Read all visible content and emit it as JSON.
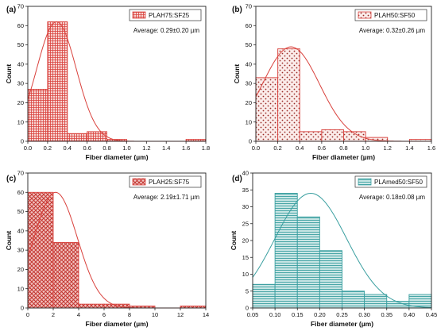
{
  "chart_data": [
    {
      "panel_label": "(a)",
      "type": "bar",
      "legend": "PLAH75:SF25",
      "annotation": "Average: 0.29±0.20 µm",
      "xlabel": "Fiber diameter (µm)",
      "ylabel": "Count",
      "xlim": [
        0,
        1.8
      ],
      "ylim": [
        0,
        70
      ],
      "xticks": [
        "0.0",
        "0.2",
        "0.4",
        "0.6",
        "0.8",
        "1.0",
        "1.2",
        "1.4",
        "1.6",
        "1.8"
      ],
      "yticks": [
        "0",
        "10",
        "20",
        "30",
        "40",
        "50",
        "60",
        "70"
      ],
      "bins": [
        [
          0,
          0.2,
          27
        ],
        [
          0.2,
          0.4,
          62
        ],
        [
          0.4,
          0.6,
          4
        ],
        [
          0.6,
          0.8,
          5
        ],
        [
          0.8,
          1.0,
          1
        ],
        [
          1.6,
          1.8,
          1
        ]
      ],
      "fit": {
        "mean": 0.29,
        "sd": 0.2,
        "peak": 62
      },
      "pattern": "grid",
      "color": "#d9423d"
    },
    {
      "panel_label": "(b)",
      "type": "bar",
      "legend": "PLAH50:SF50",
      "annotation": "Average: 0.32±0.26 µm",
      "xlabel": "Fiber diameter (µm)",
      "ylabel": "Count",
      "xlim": [
        0,
        1.6
      ],
      "ylim": [
        0,
        70
      ],
      "xticks": [
        "0.0",
        "0.2",
        "0.4",
        "0.6",
        "0.8",
        "1.0",
        "1.2",
        "1.4",
        "1.6"
      ],
      "yticks": [
        "0",
        "10",
        "20",
        "30",
        "40",
        "50",
        "60",
        "70"
      ],
      "bins": [
        [
          0,
          0.2,
          33
        ],
        [
          0.2,
          0.4,
          48
        ],
        [
          0.4,
          0.6,
          5
        ],
        [
          0.6,
          0.8,
          6
        ],
        [
          0.8,
          1.0,
          5
        ],
        [
          1.0,
          1.2,
          2
        ],
        [
          1.4,
          1.6,
          1
        ]
      ],
      "fit": {
        "mean": 0.32,
        "sd": 0.26,
        "peak": 49
      },
      "pattern": "dots",
      "color": "#d9423d"
    },
    {
      "panel_label": "(c)",
      "type": "bar",
      "legend": "PLAH25:SF75",
      "annotation": "Average: 2.19±1.71 µm",
      "xlabel": "Fiber diameter (µm)",
      "ylabel": "Count",
      "xlim": [
        0,
        14
      ],
      "ylim": [
        0,
        70
      ],
      "xticks": [
        "0",
        "2",
        "4",
        "6",
        "8",
        "10",
        "12",
        "14"
      ],
      "yticks": [
        "0",
        "10",
        "20",
        "30",
        "40",
        "50",
        "60",
        "70"
      ],
      "bins": [
        [
          0,
          2,
          60
        ],
        [
          2,
          4,
          34
        ],
        [
          4,
          6,
          2
        ],
        [
          6,
          8,
          2
        ],
        [
          8,
          10,
          1
        ],
        [
          12,
          14,
          1
        ]
      ],
      "fit": {
        "mean": 2.19,
        "sd": 1.71,
        "peak": 60
      },
      "pattern": "cross",
      "color": "#d9423d"
    },
    {
      "panel_label": "(d)",
      "type": "bar",
      "legend": "PLAmed50:SF50",
      "annotation": "Average: 0.18±0.08 µm",
      "xlabel": "Fiber diameter (µm)",
      "ylabel": "Count",
      "xlim": [
        0.05,
        0.45
      ],
      "ylim": [
        0,
        40
      ],
      "xticks": [
        "0.05",
        "0.10",
        "0.15",
        "0.20",
        "0.25",
        "0.30",
        "0.35",
        "0.40",
        "0.45"
      ],
      "yticks": [
        "0",
        "5",
        "10",
        "15",
        "20",
        "25",
        "30",
        "35",
        "40"
      ],
      "bins": [
        [
          0.05,
          0.1,
          7
        ],
        [
          0.1,
          0.15,
          34
        ],
        [
          0.15,
          0.2,
          27
        ],
        [
          0.2,
          0.25,
          17
        ],
        [
          0.25,
          0.3,
          5
        ],
        [
          0.3,
          0.35,
          4
        ],
        [
          0.35,
          0.4,
          2
        ],
        [
          0.4,
          0.45,
          4
        ]
      ],
      "fit": {
        "mean": 0.18,
        "sd": 0.08,
        "peak": 34
      },
      "pattern": "hlines",
      "color": "#3a9fa0"
    }
  ]
}
